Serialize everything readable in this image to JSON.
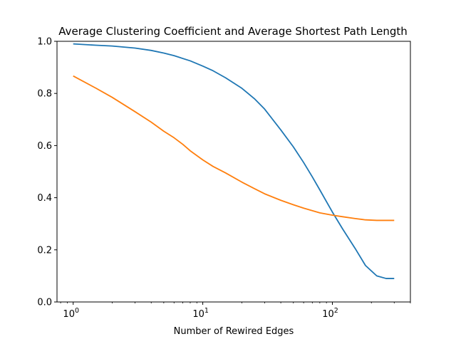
{
  "chart_data": {
    "type": "line",
    "title": "Average Clustering Coefficient and Average Shortest Path Length",
    "xlabel": "Number of Rewired Edges",
    "ylabel": "",
    "xscale": "log",
    "xlim": [
      0.75,
      400
    ],
    "ylim": [
      0,
      1.0
    ],
    "grid": false,
    "legend": "none",
    "xticks": [
      {
        "value": 1,
        "label": "10^0",
        "base": "10",
        "exp": "0"
      },
      {
        "value": 10,
        "label": "10^1",
        "base": "10",
        "exp": "1"
      },
      {
        "value": 100,
        "label": "10^2",
        "base": "10",
        "exp": "2"
      }
    ],
    "yticks": [
      {
        "value": 0.0,
        "label": "0.0"
      },
      {
        "value": 0.2,
        "label": "0.2"
      },
      {
        "value": 0.4,
        "label": "0.4"
      },
      {
        "value": 0.6,
        "label": "0.6"
      },
      {
        "value": 0.8,
        "label": "0.8"
      },
      {
        "value": 1.0,
        "label": "1.0"
      }
    ],
    "series": [
      {
        "color": "#1f77b4",
        "x": [
          1,
          1.5,
          2,
          3,
          4,
          5,
          6,
          8,
          10,
          12,
          15,
          20,
          25,
          30,
          40,
          50,
          60,
          70,
          80,
          90,
          100,
          120,
          150,
          180,
          220,
          260,
          300
        ],
        "y": [
          0.99,
          0.985,
          0.982,
          0.974,
          0.965,
          0.955,
          0.945,
          0.925,
          0.905,
          0.887,
          0.86,
          0.82,
          0.78,
          0.74,
          0.66,
          0.595,
          0.535,
          0.48,
          0.43,
          0.385,
          0.345,
          0.28,
          0.205,
          0.14,
          0.1,
          0.09,
          0.09
        ]
      },
      {
        "color": "#ff7f0e",
        "x": [
          1,
          1.5,
          2,
          3,
          4,
          5,
          6,
          7,
          8,
          10,
          12,
          15,
          20,
          25,
          30,
          40,
          50,
          60,
          80,
          100,
          120,
          150,
          180,
          220,
          260,
          300
        ],
        "y": [
          0.867,
          0.82,
          0.785,
          0.73,
          0.69,
          0.655,
          0.63,
          0.605,
          0.58,
          0.545,
          0.52,
          0.495,
          0.46,
          0.435,
          0.415,
          0.39,
          0.373,
          0.36,
          0.342,
          0.333,
          0.327,
          0.32,
          0.315,
          0.313,
          0.313,
          0.313
        ]
      }
    ]
  }
}
